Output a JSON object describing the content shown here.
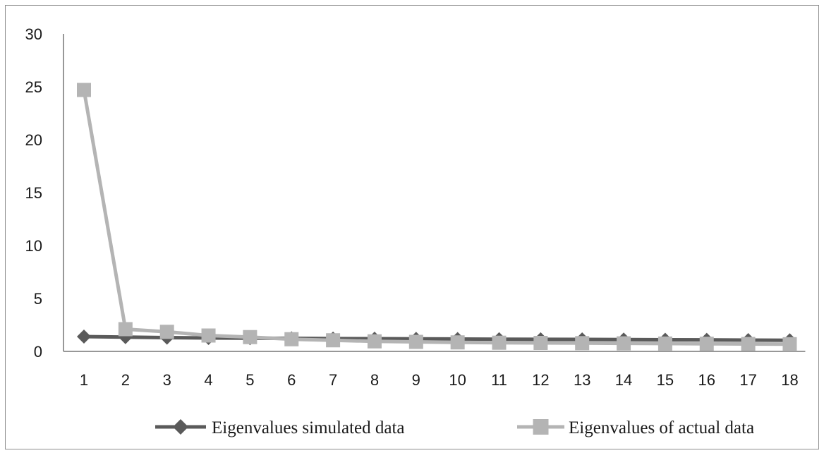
{
  "chart_data": {
    "type": "line",
    "title": "",
    "xlabel": "",
    "ylabel": "",
    "categories": [
      "1",
      "2",
      "3",
      "4",
      "5",
      "6",
      "7",
      "8",
      "9",
      "10",
      "11",
      "12",
      "13",
      "14",
      "15",
      "16",
      "17",
      "18"
    ],
    "ylim": [
      0,
      30
    ],
    "yticks": [
      "0",
      "5",
      "10",
      "15",
      "20",
      "25",
      "30"
    ],
    "grid": false,
    "legend_position": "bottom",
    "series": [
      {
        "name": "Eigenvalues simulated data",
        "marker": "diamond",
        "color": "#5a5a5a",
        "values": [
          1.4,
          1.35,
          1.3,
          1.27,
          1.25,
          1.23,
          1.21,
          1.2,
          1.18,
          1.17,
          1.15,
          1.14,
          1.13,
          1.12,
          1.1,
          1.09,
          1.07,
          1.05
        ]
      },
      {
        "name": "Eigenvalues of actual data",
        "marker": "square",
        "color": "#b4b4b4",
        "values": [
          24.7,
          2.1,
          1.85,
          1.5,
          1.35,
          1.15,
          1.05,
          0.95,
          0.9,
          0.85,
          0.82,
          0.8,
          0.78,
          0.76,
          0.74,
          0.72,
          0.7,
          0.68
        ]
      }
    ]
  }
}
